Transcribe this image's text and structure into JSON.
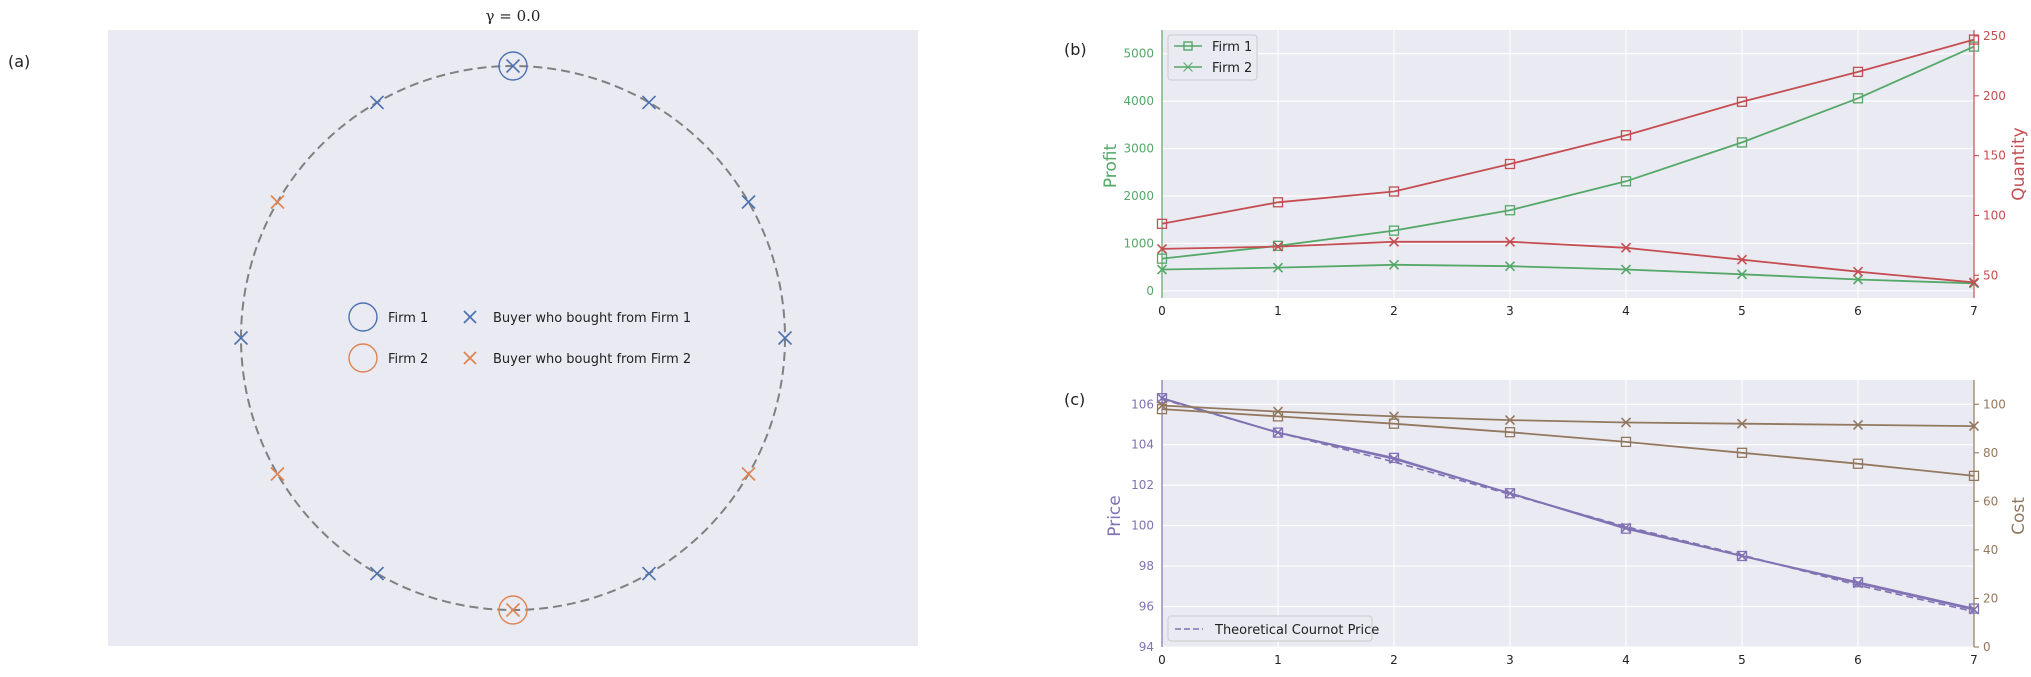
{
  "panel_labels": {
    "a": "(a)",
    "b": "(b)",
    "c": "(c)"
  },
  "colors": {
    "axes_bg": "#eaeaf2",
    "grid": "#ffffff",
    "circle": "#808080",
    "firm1_blue": "#4c72b0",
    "firm2_orange": "#dd8452",
    "profit_green": "#55a868",
    "quantity_red": "#c44e52",
    "price_purple": "#8172b3",
    "cost_brown": "#937860"
  },
  "chart_data": [
    {
      "type": "scatter",
      "title": "γ = 0.0",
      "firms": [
        {
          "name": "Firm 1",
          "angle_deg": 90
        },
        {
          "name": "Firm 2",
          "angle_deg": 270
        }
      ],
      "buyers": [
        {
          "angle_deg": 0,
          "firm": 1
        },
        {
          "angle_deg": 30,
          "firm": 1
        },
        {
          "angle_deg": 60,
          "firm": 1
        },
        {
          "angle_deg": 90,
          "firm": 1
        },
        {
          "angle_deg": 120,
          "firm": 1
        },
        {
          "angle_deg": 150,
          "firm": 2
        },
        {
          "angle_deg": 180,
          "firm": 1
        },
        {
          "angle_deg": 210,
          "firm": 2
        },
        {
          "angle_deg": 240,
          "firm": 1
        },
        {
          "angle_deg": 270,
          "firm": 2
        },
        {
          "angle_deg": 300,
          "firm": 1
        },
        {
          "angle_deg": 330,
          "firm": 2
        }
      ],
      "legend": {
        "firm1": "Firm 1",
        "firm2": "Firm 2",
        "buyer1": "Buyer who bought from Firm 1",
        "buyer2": "Buyer who bought from Firm 2"
      },
      "legend_position": "center-left"
    },
    {
      "type": "line",
      "x": [
        0,
        1,
        2,
        3,
        4,
        5,
        6,
        7
      ],
      "xlim": [
        0,
        7
      ],
      "ylabel": "Profit",
      "ylim": [
        -150,
        5500
      ],
      "yticks": [
        0,
        1000,
        2000,
        3000,
        4000,
        5000
      ],
      "ylabel2": "Quantity",
      "ylim2": [
        31,
        255
      ],
      "yticks2": [
        50,
        100,
        150,
        200,
        250
      ],
      "series": [
        {
          "name": "Firm 1",
          "axis": "left",
          "values": [
            680,
            950,
            1270,
            1700,
            2310,
            3130,
            4060,
            5150
          ]
        },
        {
          "name": "Firm 2",
          "axis": "left",
          "values": [
            450,
            490,
            550,
            520,
            450,
            350,
            240,
            160
          ]
        },
        {
          "axis": "right",
          "marker": "square",
          "values": [
            93,
            111,
            120,
            143,
            167,
            195,
            220,
            247
          ]
        },
        {
          "axis": "right",
          "marker": "x",
          "values": [
            72,
            74,
            78,
            78,
            73,
            63,
            53,
            44
          ]
        }
      ],
      "legend_position": "top-left"
    },
    {
      "type": "line",
      "x": [
        0,
        1,
        2,
        3,
        4,
        5,
        6,
        7
      ],
      "xticks": [
        0,
        1,
        2,
        3,
        4,
        5,
        6,
        7
      ],
      "xlim": [
        0,
        7
      ],
      "ylabel": "Price",
      "ylim": [
        94,
        107.2
      ],
      "yticks": [
        94,
        96,
        98,
        100,
        102,
        104,
        106
      ],
      "ylabel2": "Cost",
      "ylim2": [
        0,
        110
      ],
      "yticks2": [
        0,
        20,
        40,
        60,
        80,
        100
      ],
      "series": [
        {
          "axis": "left",
          "marker": "square",
          "values": [
            106.3,
            104.6,
            103.35,
            101.6,
            99.85,
            98.5,
            97.2,
            95.9
          ]
        },
        {
          "axis": "left",
          "marker": "x",
          "values": [
            106.3,
            104.6,
            103.3,
            101.6,
            99.9,
            98.5,
            97.15,
            95.85
          ]
        },
        {
          "name": "Theoretical Cournot Price",
          "axis": "left",
          "dashed": true,
          "values": [
            106.25,
            104.6,
            103.15,
            101.55,
            99.95,
            98.55,
            97.05,
            95.75
          ]
        },
        {
          "axis": "right",
          "marker": "square",
          "values": [
            98,
            95,
            92,
            88.5,
            84.5,
            80,
            75.5,
            70.5
          ]
        },
        {
          "axis": "right",
          "marker": "x",
          "values": [
            99.5,
            97,
            95,
            93.5,
            92.5,
            92,
            91.5,
            91
          ]
        }
      ],
      "legend_position": "bottom-left"
    }
  ]
}
